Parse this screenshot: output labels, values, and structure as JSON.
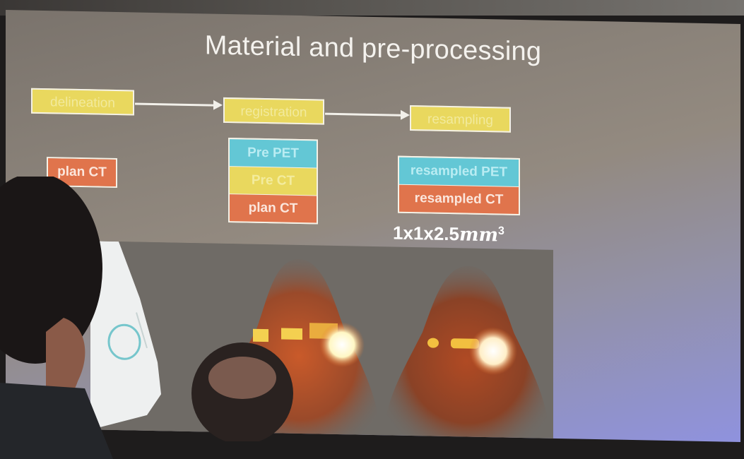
{
  "slide": {
    "title": "Material and pre-processing",
    "steps": [
      "delineation",
      "registration",
      "resampling"
    ],
    "inputs": {
      "delineation": [
        "plan CT"
      ],
      "registration": [
        "Pre PET",
        "Pre CT",
        "plan CT"
      ],
      "resampling": [
        "resampled PET",
        "resampled CT"
      ]
    },
    "resolution": "1x1x2.5",
    "resolution_unit": "mm",
    "resolution_exp": "3"
  },
  "colors": {
    "step_yellow": "#e9d85e",
    "pet_cyan": "#63c7d5",
    "ct_orange": "#e0744c"
  }
}
